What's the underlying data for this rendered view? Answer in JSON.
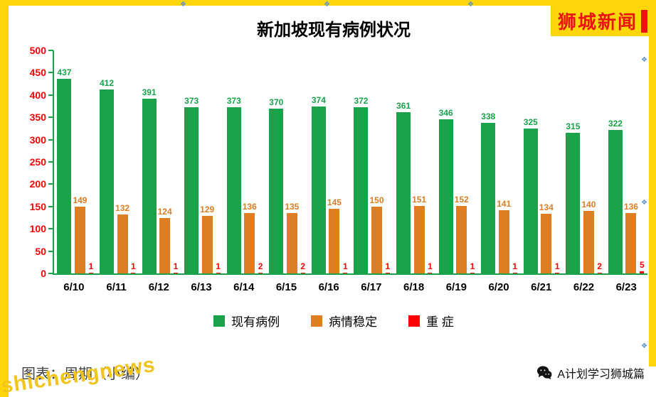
{
  "frame": {
    "brand": "狮城新闻",
    "watermark": "shichengnews",
    "caption": "图表：周期（小编）",
    "footer_account": "A计划学习狮城篇"
  },
  "icons": {
    "anchor": "❖"
  },
  "chart_data": {
    "type": "bar",
    "title": "新加坡现有病例状况",
    "categories": [
      "6/10",
      "6/11",
      "6/12",
      "6/13",
      "6/14",
      "6/15",
      "6/16",
      "6/17",
      "6/18",
      "6/19",
      "6/20",
      "6/21",
      "6/22",
      "6/23"
    ],
    "series": [
      {
        "name": "现有病例",
        "color": "#1aa24b",
        "values": [
          437,
          412,
          391,
          373,
          373,
          370,
          374,
          372,
          361,
          346,
          338,
          325,
          315,
          322
        ]
      },
      {
        "name": "病情稳定",
        "color": "#dd7e23",
        "values": [
          149,
          132,
          124,
          129,
          136,
          135,
          145,
          150,
          151,
          152,
          141,
          134,
          140,
          136
        ]
      },
      {
        "name": "重 症",
        "color": "#ff0000",
        "values": [
          1,
          1,
          1,
          1,
          2,
          2,
          1,
          1,
          1,
          1,
          1,
          1,
          2,
          5
        ]
      }
    ],
    "ylim": [
      0,
      500
    ],
    "yticks": [
      0,
      50,
      100,
      150,
      200,
      250,
      300,
      350,
      400,
      450,
      500
    ],
    "grid": false,
    "legend_position": "bottom"
  }
}
